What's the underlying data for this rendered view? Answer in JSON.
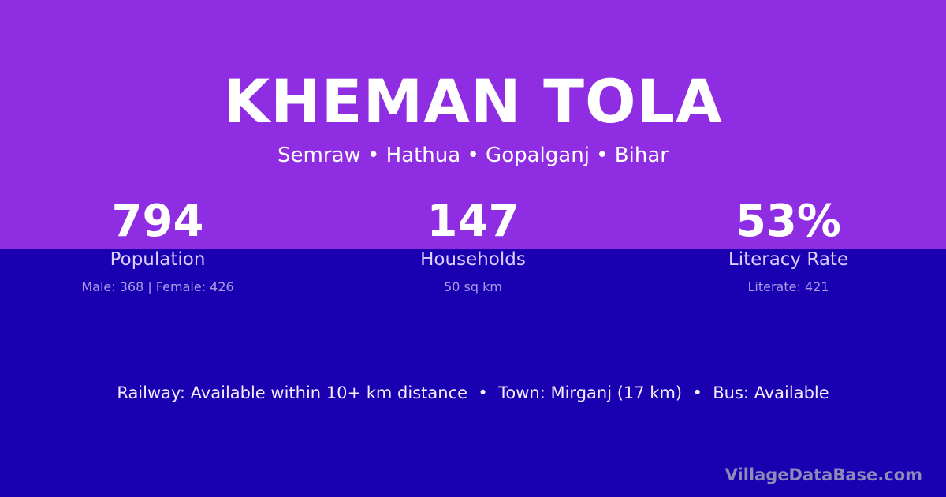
{
  "colors": {
    "top_bg": "#8e2de2",
    "bottom_bg": "#1a00b0"
  },
  "title": "KHEMAN TOLA",
  "subtitle": "Semraw • Hathua • Gopalganj • Bihar",
  "stats": [
    {
      "value": "794",
      "label": "Population",
      "sub": "Male: 368 | Female: 426"
    },
    {
      "value": "147",
      "label": "Households",
      "sub": "50 sq km"
    },
    {
      "value": "53%",
      "label": "Literacy Rate",
      "sub": "Literate: 421"
    }
  ],
  "info": "Railway: Available within 10+ km distance  •  Town: Mirganj (17 km)  •  Bus: Available",
  "brand": "VillageDataBase.com"
}
